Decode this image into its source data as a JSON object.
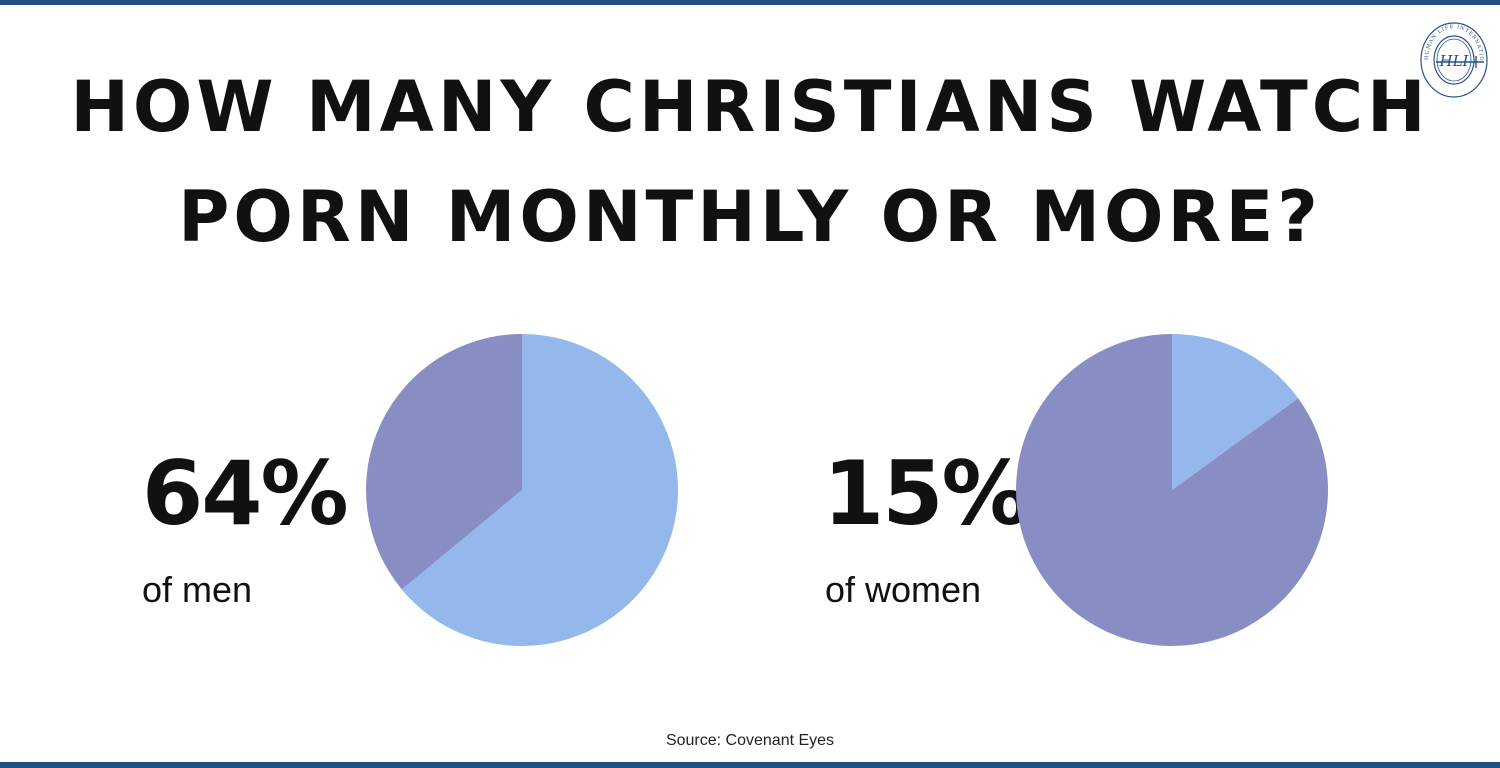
{
  "title": {
    "line1": "HOW MANY CHRISTIANS WATCH",
    "line2": "PORN MONTHLY OR MORE?"
  },
  "chart_data": [
    {
      "type": "pie",
      "headline": "64%",
      "label": "of men",
      "slices": [
        {
          "value": 64,
          "color": "#94b8ec"
        },
        {
          "value": 36,
          "color": "#888dc4"
        }
      ]
    },
    {
      "type": "pie",
      "headline": "15%",
      "label": "of women",
      "slices": [
        {
          "value": 15,
          "color": "#94b8ec"
        },
        {
          "value": 85,
          "color": "#888dc4"
        }
      ]
    }
  ],
  "source": "Source: Covenant Eyes",
  "logo": {
    "ring_text": "HUMAN LIFE INTERNATIONAL",
    "monogram": "HLI"
  },
  "colors": {
    "rule": "#1f4e80",
    "highlight": "#94b8ec",
    "remainder": "#888dc4"
  }
}
